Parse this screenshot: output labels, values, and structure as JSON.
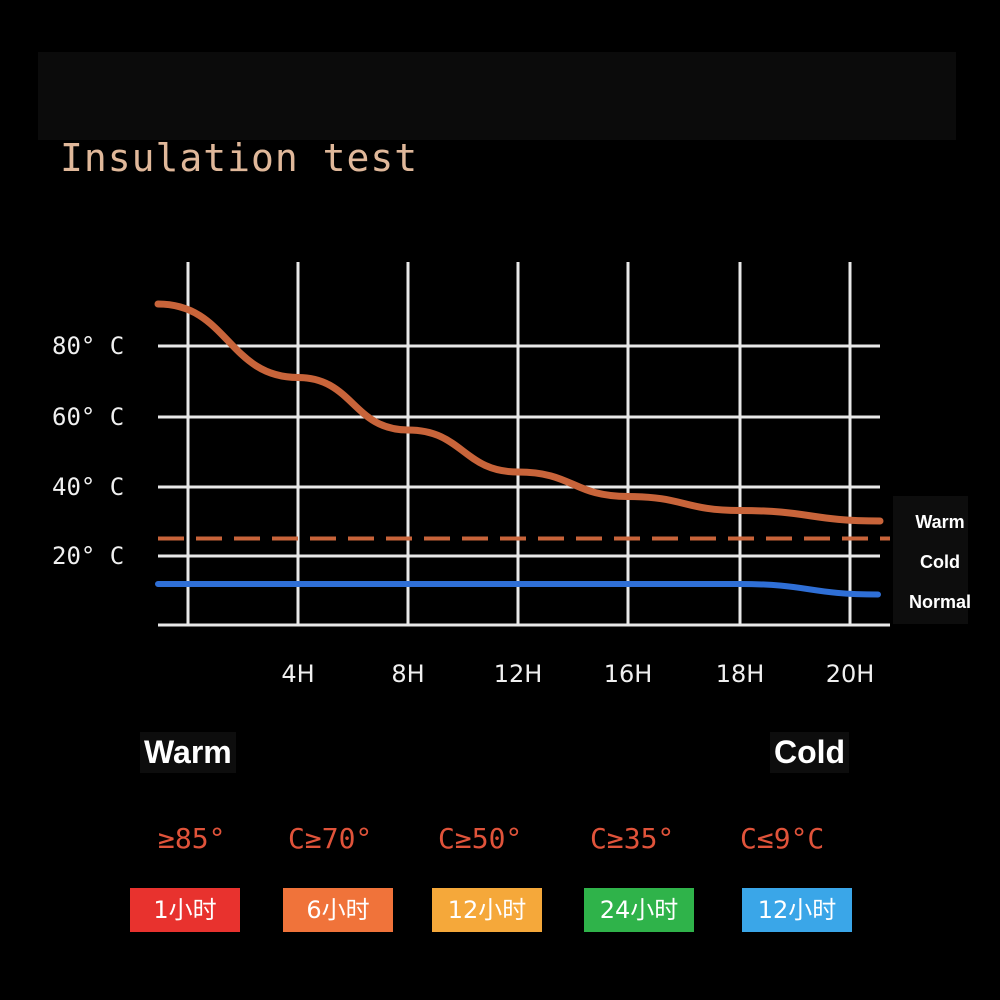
{
  "title": "Insulation test",
  "chart_data": {
    "type": "line",
    "x_ticks": [
      "4H",
      "8H",
      "12H",
      "16H",
      "18H",
      "20H"
    ],
    "y_ticks": [
      "80° C",
      "60° C",
      "40° C",
      "20° C"
    ],
    "series": [
      {
        "name": "Warm",
        "color": "#c8643a",
        "style": "solid",
        "x": [
          0,
          4,
          8,
          12,
          16,
          18,
          20
        ],
        "y": [
          92,
          71,
          56,
          44,
          37,
          33,
          30
        ]
      },
      {
        "name": "Cold",
        "color": "#c8643a",
        "style": "dashed",
        "x": [
          0,
          20
        ],
        "y": [
          25,
          25
        ]
      },
      {
        "name": "Normal",
        "color": "#2f6fd6",
        "style": "solid",
        "x": [
          0,
          4,
          8,
          12,
          16,
          18,
          20
        ],
        "y": [
          12,
          12,
          12,
          12,
          12,
          12,
          9
        ]
      }
    ],
    "grid": true,
    "legend_placement": "right"
  },
  "bottom": {
    "warm_label": "Warm",
    "cold_label": "Cold",
    "temps": [
      "≥85°",
      "C≥70°",
      "C≥50°",
      "C≥35°",
      "C≤9°C"
    ],
    "badges": [
      {
        "label": "1小时",
        "color": "#e8322e"
      },
      {
        "label": "6小时",
        "color": "#f0733a"
      },
      {
        "label": "12小时",
        "color": "#f5a83a"
      },
      {
        "label": "24小时",
        "color": "#2fb34a"
      },
      {
        "label": "12小时",
        "color": "#3aa6e8"
      }
    ]
  }
}
